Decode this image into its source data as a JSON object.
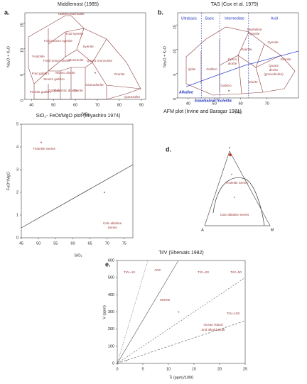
{
  "chart_data": [
    {
      "type": "scatter",
      "panel": "a.",
      "title": "Middlemost (1985)",
      "xlabel": "SiO₂",
      "ylabel": "Na₂O + K₂O",
      "xlim": [
        37,
        92
      ],
      "ylim": [
        0,
        17
      ],
      "xticks": [
        40,
        50,
        60,
        70,
        80,
        90
      ],
      "yticks": [
        0,
        5,
        10,
        15
      ],
      "x": [
        69
      ],
      "values": [
        5.2
      ],
      "color": "#777777",
      "annotations": [
        "Tawite/Urtite/Italite",
        "Foidolite",
        "Foid syenite",
        "Foid monzo syenite",
        "Foid monzo diorite",
        "Foid gabbro",
        "Syenite",
        "Monzonite",
        "Monzo diorite",
        "Monzo gabbro",
        "Quartz monzonite",
        "Peridot gabbro",
        "Gabbro",
        "Gabbroic diorite",
        "Diorite",
        "Granodiorite",
        "Granite",
        "Quartzolite"
      ]
    },
    {
      "type": "scatter",
      "panel": "b.",
      "title": "TAS (Cox et al. 1979)",
      "xlabel": "SiO₂",
      "ylabel": "Na₂O + K₂O",
      "xlim": [
        36,
        82
      ],
      "ylim": [
        0,
        17.5
      ],
      "xticks": [
        40,
        50,
        60,
        70
      ],
      "yticks": [
        0,
        5,
        10,
        15
      ],
      "x": [
        55.5
      ],
      "values": [
        1.5
      ],
      "color": "#777777",
      "annotations": [
        "Ultrabasic",
        "Basic",
        "Intermediate",
        "Acid",
        "Nepheline",
        "syenite",
        "Syenite",
        "Syenite",
        "Ijolite",
        "Gabbro",
        "Syeno",
        "diorite",
        "Quartz",
        "diorite",
        "(granodiorite)",
        "Granite",
        "Diorite",
        "Gabbro",
        "Alkaline",
        "Subalkaline/Tholeiitic"
      ]
    },
    {
      "type": "scatter",
      "title": "SiO₂- FeOt/MgO plot (Miyashiro 1974)",
      "xlabel": "SiO₂",
      "ylabel": "FeO*/MgO",
      "xlim": [
        45,
        77.5
      ],
      "ylim": [
        0,
        5
      ],
      "xticks": [
        45,
        50,
        55,
        60,
        65,
        70,
        75
      ],
      "yticks": [
        0,
        1,
        2,
        3,
        4,
        5
      ],
      "x": [
        50.8,
        69.2
      ],
      "values": [
        4.2,
        2.0
      ],
      "color": "#b55a5a",
      "annotations": [
        "Tholeiite Series",
        "Calc-alkaline",
        "Series"
      ]
    },
    {
      "type": "ternary",
      "panel": "d.",
      "title": "AFM plot (Irvine and Baragar 1971)",
      "vertex_labels": [
        "A",
        "F",
        "M"
      ],
      "points": [
        [
          2,
          95,
          3
        ],
        [
          16,
          69,
          15
        ],
        [
          31,
          38,
          31
        ]
      ],
      "color": "#c0392b",
      "annotations": [
        "Tholeiite Series",
        "Calc-alkaline Series"
      ]
    },
    {
      "type": "scatter",
      "panel": "e.",
      "title": "Ti/V (Shervais 1982)",
      "xlabel": "Ti (ppm)/1000",
      "ylabel": "V (ppm)",
      "xlim": [
        0,
        25
      ],
      "ylim": [
        0,
        600
      ],
      "xticks": [
        0,
        5,
        10,
        15,
        20,
        25
      ],
      "yticks": [
        0,
        100,
        200,
        300,
        400,
        500,
        600
      ],
      "x": [
        12,
        1.8
      ],
      "values": [
        300,
        16
      ],
      "color": "#888888",
      "annotations": [
        "Ti/V=10",
        "ARC",
        "Ti/V=20",
        "Ti/V=50",
        "MORB",
        "Ocean Island",
        "and alkali basalt",
        "Ti/V=100"
      ]
    }
  ]
}
